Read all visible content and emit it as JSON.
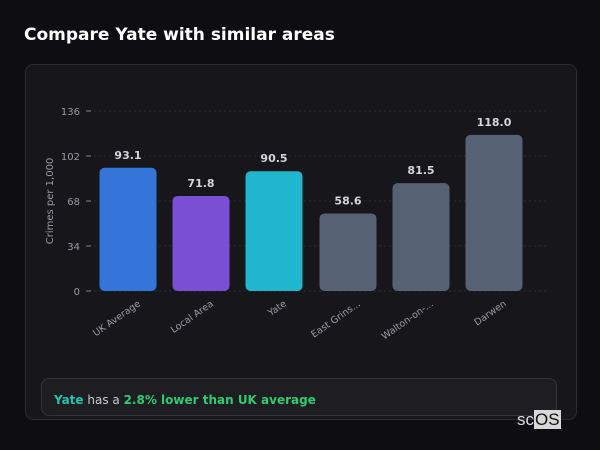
{
  "header": {
    "title": "Compare Yate with similar areas"
  },
  "chart_data": {
    "type": "bar",
    "title": "",
    "xlabel": "",
    "ylabel": "Crimes per 1,000",
    "ylim": [
      0,
      136
    ],
    "yticks": [
      0,
      34,
      68,
      102,
      136
    ],
    "grid": true,
    "categories": [
      "UK Average",
      "Local Area",
      "Yate",
      "East Grins...",
      "Walton-on-...",
      "Darwen"
    ],
    "values": [
      93.1,
      71.8,
      90.5,
      58.6,
      81.5,
      118.0
    ],
    "value_labels": [
      "93.1",
      "71.8",
      "90.5",
      "58.6",
      "81.5",
      "118.0"
    ],
    "colors": [
      "#3574d9",
      "#7b4fd4",
      "#20b6cd",
      "#566173",
      "#566173",
      "#566173"
    ]
  },
  "summary": {
    "area": "Yate",
    "middle": " has a ",
    "comparison": "2.8% lower than UK average"
  },
  "logo": {
    "text_a": "sc",
    "text_b": "OS"
  }
}
